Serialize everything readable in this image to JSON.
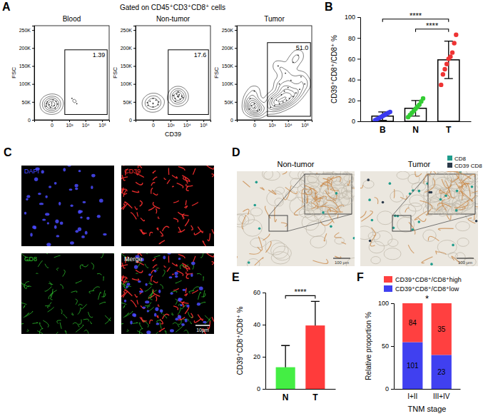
{
  "figure": {
    "panel_labels": [
      "A",
      "B",
      "C",
      "D",
      "E",
      "F"
    ],
    "panel_a_title": "Gated on CD45⁺CD3⁺CD8⁺ cells"
  },
  "chart_data": [
    {
      "type": "contour",
      "title": "Blood",
      "y_label": "FSC",
      "xlim": [
        -1000,
        262144
      ],
      "xticks": [
        0,
        {
          "value": 1000,
          "label": "10³"
        },
        {
          "value": 10000,
          "label": "10⁴"
        },
        {
          "value": 100000,
          "label": "10⁵"
        }
      ],
      "ylim": [
        0,
        262144
      ],
      "yticks": [
        0,
        {
          "value": 50000,
          "label": "50K"
        },
        {
          "value": 100000,
          "label": "100K"
        },
        {
          "value": 150000,
          "label": "150K"
        },
        {
          "value": 200000,
          "label": "200K"
        },
        {
          "value": 250000,
          "label": "250K"
        }
      ],
      "points": [
        [
          -120,
          38000
        ],
        [
          -40,
          42000
        ],
        [
          40,
          40000
        ],
        [
          120,
          44000
        ],
        [
          -80,
          50000
        ],
        [
          0,
          47000
        ],
        [
          80,
          52000
        ],
        [
          -20,
          35000
        ],
        [
          60,
          33000
        ],
        [
          -100,
          45000
        ],
        [
          20,
          56000
        ],
        [
          0,
          41000
        ],
        [
          1500,
          60000
        ],
        [
          3000,
          45000
        ]
      ],
      "gate": {
        "xlim": [
          500,
          200000
        ],
        "ylim": [
          15000,
          195000
        ]
      },
      "gate_percent": 1.39
    },
    {
      "type": "contour",
      "title": "Non-tumor",
      "y_label": "FSC",
      "x_label": "CD39",
      "xlim": [
        -1000,
        262144
      ],
      "xticks": [
        0,
        {
          "value": 1000,
          "label": "10³"
        },
        {
          "value": 10000,
          "label": "10⁴"
        },
        {
          "value": 100000,
          "label": "10⁵"
        }
      ],
      "ylim": [
        0,
        262144
      ],
      "yticks": [
        0,
        {
          "value": 50000,
          "label": "50K"
        },
        {
          "value": 100000,
          "label": "100K"
        },
        {
          "value": 150000,
          "label": "150K"
        },
        {
          "value": 200000,
          "label": "200K"
        },
        {
          "value": 250000,
          "label": "250K"
        }
      ],
      "points": [
        [
          -100,
          40000
        ],
        [
          0,
          45000
        ],
        [
          100,
          42000
        ],
        [
          -50,
          52000
        ],
        [
          50,
          55000
        ],
        [
          0,
          36000
        ],
        [
          -120,
          48000
        ],
        [
          120,
          50000
        ],
        [
          0,
          60000
        ],
        [
          2000,
          60000
        ],
        [
          3000,
          65000
        ],
        [
          4000,
          58000
        ],
        [
          2500,
          72000
        ],
        [
          3500,
          70000
        ],
        [
          5000,
          66000
        ],
        [
          2000,
          52000
        ],
        [
          3000,
          78000
        ],
        [
          6000,
          62000
        ],
        [
          1500,
          68000
        ]
      ],
      "gate": {
        "xlim": [
          700,
          200000
        ],
        "ylim": [
          15000,
          195000
        ]
      },
      "gate_percent": 17.6
    },
    {
      "type": "contour",
      "title": "Tumor",
      "y_label": "FSC",
      "xlim": [
        -1000,
        262144
      ],
      "xticks": [
        0,
        {
          "value": 1000,
          "label": "10³"
        },
        {
          "value": 10000,
          "label": "10⁴"
        },
        {
          "value": 100000,
          "label": "10⁵"
        }
      ],
      "ylim": [
        0,
        262144
      ],
      "yticks": [
        0,
        {
          "value": 50000,
          "label": "50K"
        },
        {
          "value": 100000,
          "label": "100K"
        },
        {
          "value": 150000,
          "label": "150K"
        },
        {
          "value": 200000,
          "label": "200K"
        },
        {
          "value": 250000,
          "label": "250K"
        }
      ],
      "points": [
        [
          -100,
          30000
        ],
        [
          0,
          35000
        ],
        [
          100,
          28000
        ],
        [
          -50,
          40000
        ],
        [
          50,
          25000
        ],
        [
          0,
          45000
        ],
        [
          800,
          35000
        ],
        [
          1500,
          40000
        ],
        [
          3000,
          45000
        ],
        [
          5000,
          50000
        ],
        [
          8000,
          55000
        ],
        [
          12000,
          60000
        ],
        [
          20000,
          65000
        ],
        [
          2000,
          55000
        ],
        [
          4000,
          70000
        ],
        [
          6000,
          80000
        ],
        [
          10000,
          90000
        ],
        [
          3000,
          100000
        ],
        [
          1000,
          60000
        ],
        [
          15000,
          110000
        ],
        [
          30000,
          75000
        ],
        [
          50000,
          85000
        ],
        [
          7000,
          130000
        ],
        [
          2500,
          150000
        ],
        [
          20000,
          160000
        ],
        [
          60000,
          120000
        ],
        [
          -80,
          60000
        ],
        [
          0,
          80000
        ],
        [
          100000,
          100000
        ],
        [
          40000,
          180000
        ]
      ],
      "gate": {
        "xlim": [
          500,
          220000
        ],
        "ylim": [
          10000,
          215000
        ]
      },
      "gate_percent": {
        "value": 51.0,
        "label": "51.0"
      }
    },
    {
      "type": "bar",
      "categories": [
        "B",
        "N",
        "T"
      ],
      "values": [
        5,
        12.5,
        59
      ],
      "errors": [
        4,
        7.5,
        18
      ],
      "points": [
        [
          1,
          2,
          3,
          4,
          5,
          6,
          7,
          8,
          9
        ],
        [
          4,
          6,
          8,
          10,
          12,
          14,
          16,
          19,
          22
        ],
        [
          35,
          45,
          50,
          55,
          60,
          62,
          66,
          75,
          83
        ]
      ],
      "colors": [
        "#3b3bf0",
        "#33cc33",
        "#ee3333"
      ],
      "ylim": [
        0,
        100
      ],
      "yticks": [
        0,
        20,
        40,
        60,
        80,
        100
      ],
      "y_label": "CD39⁺CD8⁺/CD8⁺ %",
      "significance": [
        {
          "from": 1,
          "to": 2,
          "label": "****"
        },
        {
          "from": 0,
          "to": 2,
          "label": "****"
        }
      ]
    },
    {
      "type": "bar",
      "categories": [
        "N",
        "T"
      ],
      "values": [
        13.5,
        39.5
      ],
      "errors": [
        13.5,
        15
      ],
      "colors": [
        "#44ee44",
        "#ff3b3b"
      ],
      "ylim": [
        0,
        60
      ],
      "yticks": [
        0,
        20,
        40,
        60
      ],
      "y_label": "CD39⁺CD8⁺/CD8⁺ %",
      "significance": [
        {
          "from": 0,
          "to": 1,
          "label": "****"
        }
      ]
    },
    {
      "type": "bar",
      "stacked": true,
      "categories": [
        "I+II",
        "III+IV"
      ],
      "series": [
        {
          "name": "CD39⁺CD8⁺/CD8⁺low",
          "color": "#4040f0",
          "values": [
            54.6,
            39.7
          ],
          "counts": [
            101,
            23
          ]
        },
        {
          "name": "CD39⁺CD8⁺/CD8⁺high",
          "color": "#ff4040",
          "values": [
            45.4,
            60.3
          ],
          "counts": [
            84,
            35
          ]
        }
      ],
      "ylim": [
        0,
        100
      ],
      "yticks": [
        0,
        50,
        100
      ],
      "y_label": "Relative proportion %",
      "x_label": "TNM stage",
      "legend": "top",
      "significance": [
        {
          "from": 0,
          "to": 1,
          "label": "*"
        }
      ]
    }
  ],
  "images": {
    "C": {
      "tiles": [
        {
          "label": "DAPI",
          "color": "#4a4aff"
        },
        {
          "label": "CD39",
          "color": "#ff3030"
        },
        {
          "label": "CD8",
          "color": "#30d030"
        },
        {
          "label": "Merge",
          "color": "#ffffff"
        }
      ],
      "scale_bar": "10μm"
    },
    "D": {
      "tiles": [
        {
          "label": "Non-tumor"
        },
        {
          "label": "Tumor"
        }
      ],
      "legend": [
        {
          "label": "CD8",
          "color": "#1f9c8c"
        },
        {
          "label": "CD39 CD8",
          "color": "#2b3a4a"
        }
      ],
      "scale_bar": "100 μm"
    }
  }
}
